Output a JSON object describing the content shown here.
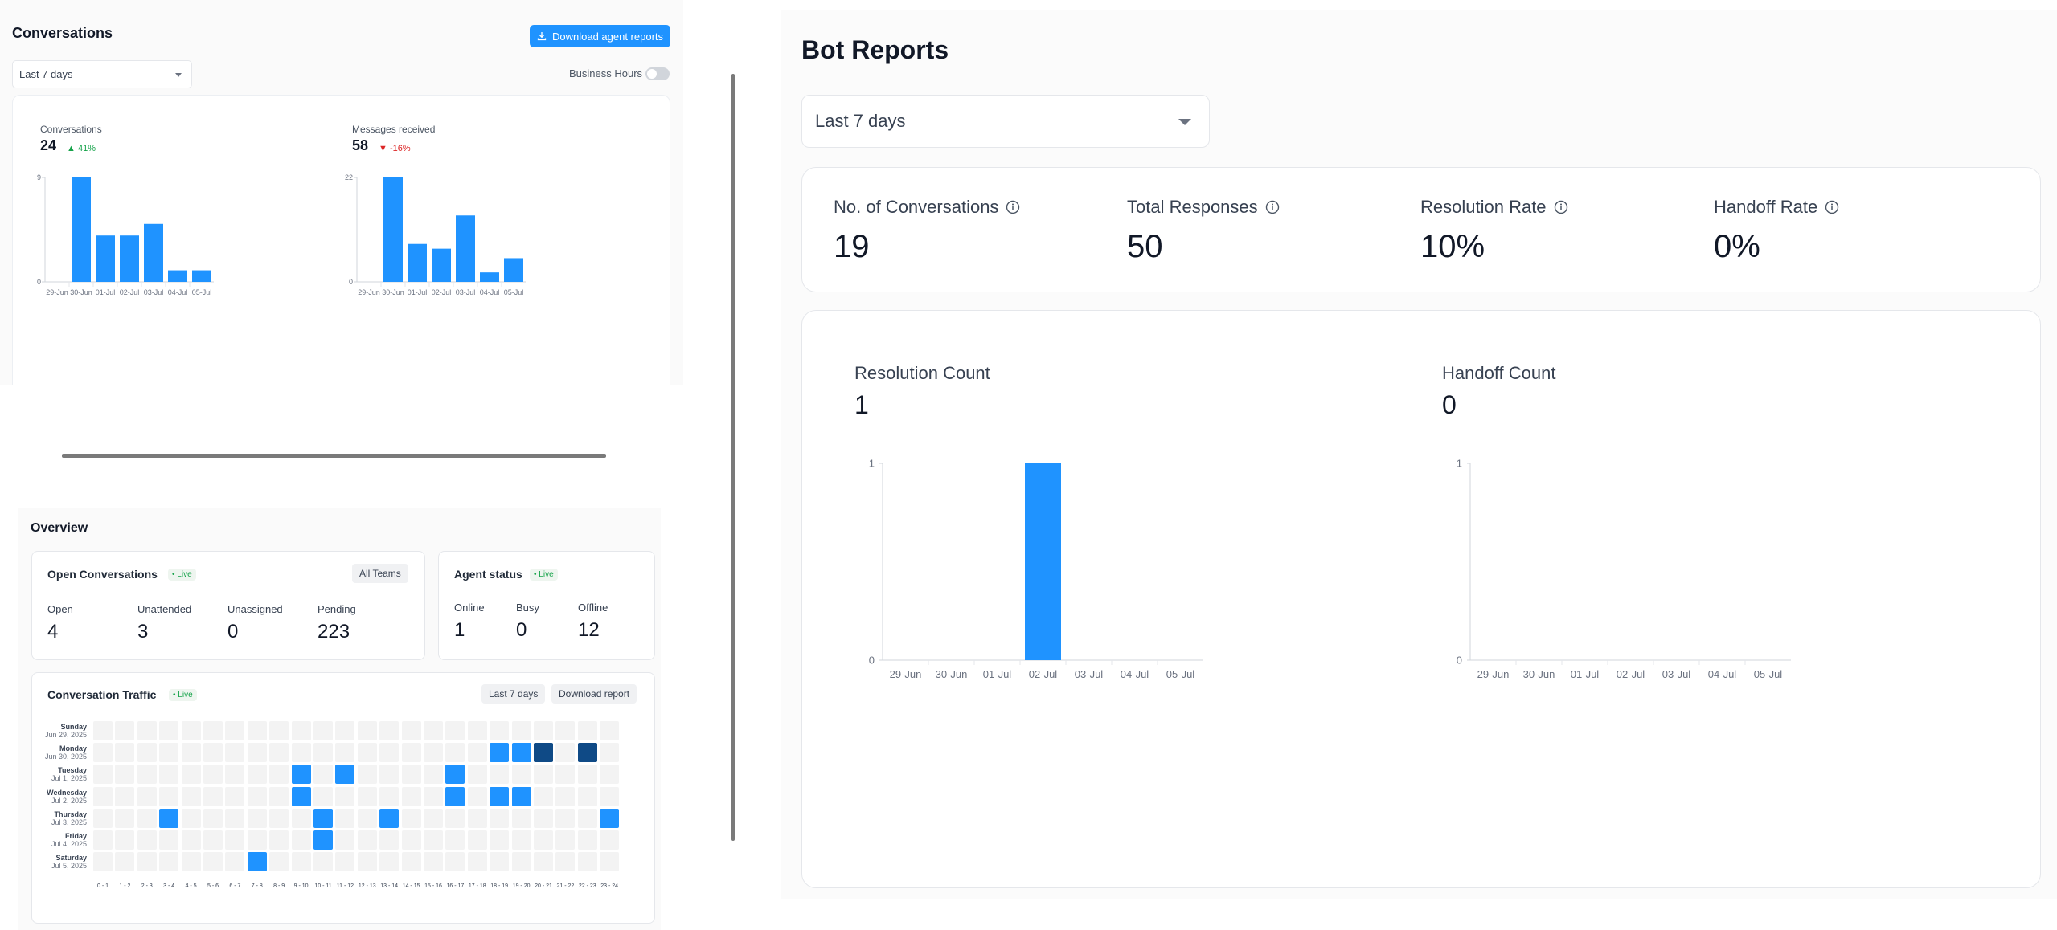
{
  "conversations": {
    "title": "Conversations",
    "download_label": "Download agent reports",
    "period": "Last 7 days",
    "business_hours_label": "Business Hours",
    "business_hours_enabled": false,
    "charts": [
      {
        "label": "Conversations",
        "value": "24",
        "trend": "41%",
        "trend_direction": "up"
      },
      {
        "label": "Messages received",
        "value": "58",
        "trend": "-16%",
        "trend_direction": "down"
      }
    ]
  },
  "overview": {
    "title": "Overview",
    "open_conversations": {
      "title": "Open Conversations",
      "live": "Live",
      "team_filter": "All Teams",
      "metrics": [
        {
          "label": "Open",
          "value": "4"
        },
        {
          "label": "Unattended",
          "value": "3"
        },
        {
          "label": "Unassigned",
          "value": "0"
        },
        {
          "label": "Pending",
          "value": "223"
        }
      ]
    },
    "agent_status": {
      "title": "Agent status",
      "live": "Live",
      "metrics": [
        {
          "label": "Online",
          "value": "1"
        },
        {
          "label": "Busy",
          "value": "0"
        },
        {
          "label": "Offline",
          "value": "12"
        }
      ]
    },
    "traffic": {
      "title": "Conversation Traffic",
      "live": "Live",
      "period_button": "Last 7 days",
      "download_button": "Download report",
      "days": [
        {
          "name": "Sunday",
          "date": "Jun 29, 2025"
        },
        {
          "name": "Monday",
          "date": "Jun 30, 2025"
        },
        {
          "name": "Tuesday",
          "date": "Jul 1, 2025"
        },
        {
          "name": "Wednesday",
          "date": "Jul 2, 2025"
        },
        {
          "name": "Thursday",
          "date": "Jul 3, 2025"
        },
        {
          "name": "Friday",
          "date": "Jul 4, 2025"
        },
        {
          "name": "Saturday",
          "date": "Jul 5, 2025"
        }
      ],
      "hours": [
        "0 - 1",
        "1 - 2",
        "2 - 3",
        "3 - 4",
        "4 - 5",
        "5 - 6",
        "6 - 7",
        "7 - 8",
        "8 - 9",
        "9 - 10",
        "10 - 11",
        "11 - 12",
        "12 - 13",
        "13 - 14",
        "14 - 15",
        "15 - 16",
        "16 - 17",
        "17 - 18",
        "18 - 19",
        "19 - 20",
        "20 - 21",
        "21 - 22",
        "22 - 23",
        "23 - 24"
      ],
      "levels": [
        [
          0,
          0,
          0,
          0,
          0,
          0,
          0,
          0,
          0,
          0,
          0,
          0,
          0,
          0,
          0,
          0,
          0,
          0,
          0,
          0,
          0,
          0,
          0,
          0
        ],
        [
          0,
          0,
          0,
          0,
          0,
          0,
          0,
          0,
          0,
          0,
          0,
          0,
          0,
          0,
          0,
          0,
          0,
          0,
          1,
          1,
          2,
          0,
          2,
          0
        ],
        [
          0,
          0,
          0,
          0,
          0,
          0,
          0,
          0,
          0,
          1,
          0,
          1,
          0,
          0,
          0,
          0,
          1,
          0,
          0,
          0,
          0,
          0,
          0,
          0
        ],
        [
          0,
          0,
          0,
          0,
          0,
          0,
          0,
          0,
          0,
          1,
          0,
          0,
          0,
          0,
          0,
          0,
          1,
          0,
          1,
          1,
          0,
          0,
          0,
          0
        ],
        [
          0,
          0,
          0,
          1,
          0,
          0,
          0,
          0,
          0,
          0,
          1,
          0,
          0,
          1,
          0,
          0,
          0,
          0,
          0,
          0,
          0,
          0,
          0,
          1
        ],
        [
          0,
          0,
          0,
          0,
          0,
          0,
          0,
          0,
          0,
          0,
          1,
          0,
          0,
          0,
          0,
          0,
          0,
          0,
          0,
          0,
          0,
          0,
          0,
          0
        ],
        [
          0,
          0,
          0,
          0,
          0,
          0,
          0,
          1,
          0,
          0,
          0,
          0,
          0,
          0,
          0,
          0,
          0,
          0,
          0,
          0,
          0,
          0,
          0,
          0
        ]
      ],
      "colors": {
        "empty": "#f3f3f3",
        "low": "#1f93ff",
        "high": "#0f4a86"
      }
    }
  },
  "bot": {
    "title": "Bot Reports",
    "period": "Last 7 days",
    "kpis": [
      {
        "label": "No. of Conversations",
        "value": "19"
      },
      {
        "label": "Total Responses",
        "value": "50"
      },
      {
        "label": "Resolution Rate",
        "value": "10%"
      },
      {
        "label": "Handoff Rate",
        "value": "0%"
      }
    ],
    "charts": [
      {
        "label": "Resolution Count",
        "value": "1"
      },
      {
        "label": "Handoff Count",
        "value": "0"
      }
    ]
  },
  "chart_data": [
    {
      "type": "bar",
      "title": "Conversations",
      "categories": [
        "29-Jun",
        "30-Jun",
        "01-Jul",
        "02-Jul",
        "03-Jul",
        "04-Jul",
        "05-Jul"
      ],
      "values": [
        0,
        9,
        4,
        4,
        5,
        1,
        1
      ],
      "ylim": [
        0,
        9
      ],
      "yticks": [
        "0",
        "9"
      ],
      "color": "#1f93ff"
    },
    {
      "type": "bar",
      "title": "Messages received",
      "categories": [
        "29-Jun",
        "30-Jun",
        "01-Jul",
        "02-Jul",
        "03-Jul",
        "04-Jul",
        "05-Jul"
      ],
      "values": [
        0,
        22,
        8,
        7,
        14,
        2,
        5
      ],
      "ylim": [
        0,
        22
      ],
      "yticks": [
        "0",
        "22"
      ],
      "color": "#1f93ff"
    },
    {
      "type": "bar",
      "title": "Resolution Count",
      "categories": [
        "29-Jun",
        "30-Jun",
        "01-Jul",
        "02-Jul",
        "03-Jul",
        "04-Jul",
        "05-Jul"
      ],
      "values": [
        0,
        0,
        0,
        1,
        0,
        0,
        0
      ],
      "ylim": [
        0,
        1
      ],
      "yticks": [
        "0",
        "1"
      ],
      "color": "#1f93ff"
    },
    {
      "type": "bar",
      "title": "Handoff Count",
      "categories": [
        "29-Jun",
        "30-Jun",
        "01-Jul",
        "02-Jul",
        "03-Jul",
        "04-Jul",
        "05-Jul"
      ],
      "values": [
        0,
        0,
        0,
        0,
        0,
        0,
        0
      ],
      "ylim": [
        0,
        1
      ],
      "yticks": [
        "0",
        "1"
      ],
      "color": "#1f93ff"
    }
  ]
}
